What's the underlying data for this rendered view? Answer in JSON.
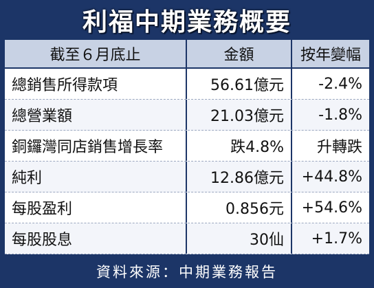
{
  "title": "利福中期業務概要",
  "table": {
    "header": [
      "截至６月底止",
      "金額",
      "按年變幅"
    ],
    "rows": [
      [
        "總銷售所得款項",
        "56.61億元",
        "-2.4%"
      ],
      [
        "總營業額",
        "21.03億元",
        "-1.8%"
      ],
      [
        "銅鑼灣同店銷售增長率",
        "跌4.8%",
        "升轉跌"
      ],
      [
        "純利",
        "12.86億元",
        "+44.8%"
      ],
      [
        "每股盈利",
        "0.856元",
        "+54.6%"
      ],
      [
        "每股股息",
        "30仙",
        "+1.7%"
      ]
    ]
  },
  "source": "資料來源：中期業務報告"
}
